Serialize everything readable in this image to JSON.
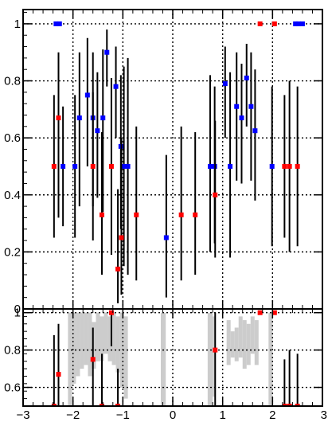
{
  "chart_data": [
    {
      "type": "scatter",
      "title": "",
      "xlabel": "",
      "ylabel": "",
      "xlim": [
        -3,
        3
      ],
      "ylim": [
        0,
        1.05
      ],
      "grid": true,
      "y_ticks": [
        0,
        0.2,
        0.4,
        0.6,
        0.8,
        1
      ],
      "y_tick_labels": [
        "0",
        "0.2",
        "0.4",
        "0.6",
        "0.8",
        "1"
      ],
      "series": [
        {
          "color": "#0000ff",
          "points": [
            {
              "x": -2.34,
              "y": 1.0,
              "lo": 1.0,
              "hi": 1.0
            },
            {
              "x": -2.27,
              "y": 1.0,
              "lo": 1.0,
              "hi": 1.0
            },
            {
              "x": -2.2,
              "y": 0.5,
              "lo": 0.29,
              "hi": 0.71
            },
            {
              "x": -1.96,
              "y": 0.5,
              "lo": 0.25,
              "hi": 0.75
            },
            {
              "x": -1.87,
              "y": 0.67,
              "lo": 0.36,
              "hi": 0.9
            },
            {
              "x": -1.71,
              "y": 0.75,
              "lo": 0.5,
              "hi": 0.95
            },
            {
              "x": -1.6,
              "y": 0.67,
              "lo": 0.36,
              "hi": 0.9
            },
            {
              "x": -1.51,
              "y": 0.625,
              "lo": 0.39,
              "hi": 0.83
            },
            {
              "x": -1.4,
              "y": 0.67,
              "lo": 0.34,
              "hi": 0.91
            },
            {
              "x": -1.32,
              "y": 0.9,
              "lo": 0.78,
              "hi": 0.98
            },
            {
              "x": -1.14,
              "y": 0.78,
              "lo": 0.6,
              "hi": 0.92
            },
            {
              "x": -1.04,
              "y": 0.57,
              "lo": 0.28,
              "hi": 0.82
            },
            {
              "x": -0.98,
              "y": 0.5,
              "lo": 0.15,
              "hi": 0.85
            },
            {
              "x": -0.9,
              "y": 0.5,
              "lo": 0.12,
              "hi": 0.88
            },
            {
              "x": -0.13,
              "y": 0.25,
              "lo": 0.04,
              "hi": 0.54
            },
            {
              "x": 0.75,
              "y": 0.5,
              "lo": 0.2,
              "hi": 0.82
            },
            {
              "x": 0.84,
              "y": 0.5,
              "lo": 0.23,
              "hi": 0.78
            },
            {
              "x": 1.05,
              "y": 0.79,
              "lo": 0.6,
              "hi": 0.92
            },
            {
              "x": 1.15,
              "y": 0.5,
              "lo": 0.18,
              "hi": 0.83
            },
            {
              "x": 1.28,
              "y": 0.71,
              "lo": 0.45,
              "hi": 0.9
            },
            {
              "x": 1.38,
              "y": 0.67,
              "lo": 0.44,
              "hi": 0.86
            },
            {
              "x": 1.48,
              "y": 0.81,
              "lo": 0.64,
              "hi": 0.93
            },
            {
              "x": 1.57,
              "y": 0.71,
              "lo": 0.45,
              "hi": 0.9
            },
            {
              "x": 1.65,
              "y": 0.625,
              "lo": 0.38,
              "hi": 0.84
            },
            {
              "x": 1.99,
              "y": 0.5,
              "lo": 0.22,
              "hi": 0.78
            },
            {
              "x": 2.46,
              "y": 1.0,
              "lo": 1.0,
              "hi": 1.0
            },
            {
              "x": 2.52,
              "y": 1.0,
              "lo": 1.0,
              "hi": 1.0
            },
            {
              "x": 2.6,
              "y": 1.0,
              "lo": 1.0,
              "hi": 1.0
            }
          ]
        },
        {
          "color": "#ff0000",
          "points": [
            {
              "x": -2.38,
              "y": 0.5,
              "lo": 0.25,
              "hi": 0.75
            },
            {
              "x": -2.29,
              "y": 0.67,
              "lo": 0.32,
              "hi": 0.9
            },
            {
              "x": -1.6,
              "y": 0.5,
              "lo": 0.24,
              "hi": 0.76
            },
            {
              "x": -1.42,
              "y": 0.33,
              "lo": 0.12,
              "hi": 0.62
            },
            {
              "x": -1.23,
              "y": 0.5,
              "lo": 0.19,
              "hi": 0.81
            },
            {
              "x": -1.1,
              "y": 0.14,
              "lo": 0.02,
              "hi": 0.42
            },
            {
              "x": -1.03,
              "y": 0.25,
              "lo": 0.05,
              "hi": 0.6
            },
            {
              "x": -0.73,
              "y": 0.33,
              "lo": 0.1,
              "hi": 0.64
            },
            {
              "x": 0.17,
              "y": 0.33,
              "lo": 0.1,
              "hi": 0.64
            },
            {
              "x": 0.45,
              "y": 0.33,
              "lo": 0.12,
              "hi": 0.62
            },
            {
              "x": 0.85,
              "y": 0.4,
              "lo": 0.18,
              "hi": 0.66
            },
            {
              "x": 1.75,
              "y": 1.0,
              "lo": 1.0,
              "hi": 1.0
            },
            {
              "x": 2.04,
              "y": 1.0,
              "lo": 1.0,
              "hi": 1.0
            },
            {
              "x": 2.24,
              "y": 0.5,
              "lo": 0.25,
              "hi": 0.75
            },
            {
              "x": 2.34,
              "y": 0.5,
              "lo": 0.2,
              "hi": 0.8
            },
            {
              "x": 2.5,
              "y": 0.5,
              "lo": 0.22,
              "hi": 0.78
            }
          ]
        }
      ]
    },
    {
      "type": "scatter",
      "title": "",
      "xlabel": "",
      "ylabel": "",
      "xlim": [
        -3,
        3
      ],
      "ylim": [
        0.5,
        1.02
      ],
      "grid": true,
      "x_ticks": [
        -3,
        -2,
        -1,
        0,
        1,
        2,
        3
      ],
      "x_tick_labels": [
        "−3",
        "−2",
        "−1",
        "0",
        "1",
        "2",
        "3"
      ],
      "y_ticks": [
        0.6,
        0.8,
        1
      ],
      "y_tick_labels": [
        "0.6",
        "0.8",
        "1"
      ],
      "band": {
        "color": "#cccccc",
        "bins": [
          {
            "x0": -2.1,
            "x1": -2.02,
            "lo": 0.5,
            "hi": 1.0
          },
          {
            "x0": -2.02,
            "x1": -1.94,
            "lo": 0.62,
            "hi": 1.0
          },
          {
            "x0": -1.94,
            "x1": -1.86,
            "lo": 0.66,
            "hi": 1.0
          },
          {
            "x0": -1.86,
            "x1": -1.78,
            "lo": 0.7,
            "hi": 1.0
          },
          {
            "x0": -1.78,
            "x1": -1.7,
            "lo": 0.72,
            "hi": 1.0
          },
          {
            "x0": -1.7,
            "x1": -1.62,
            "lo": 0.66,
            "hi": 1.0
          },
          {
            "x0": -1.62,
            "x1": -1.54,
            "lo": 0.7,
            "hi": 0.95
          },
          {
            "x0": -1.54,
            "x1": -1.46,
            "lo": 0.74,
            "hi": 1.0
          },
          {
            "x0": -1.46,
            "x1": -1.38,
            "lo": 0.74,
            "hi": 0.98
          },
          {
            "x0": -1.38,
            "x1": -1.3,
            "lo": 0.78,
            "hi": 1.0
          },
          {
            "x0": -1.3,
            "x1": -1.22,
            "lo": 0.74,
            "hi": 0.98
          },
          {
            "x0": -1.22,
            "x1": -1.14,
            "lo": 0.72,
            "hi": 1.0
          },
          {
            "x0": -1.14,
            "x1": -1.06,
            "lo": 0.68,
            "hi": 0.98
          },
          {
            "x0": -1.06,
            "x1": -0.98,
            "lo": 0.6,
            "hi": 1.0
          },
          {
            "x0": -0.98,
            "x1": -0.9,
            "lo": 0.54,
            "hi": 0.98
          },
          {
            "x0": -0.24,
            "x1": -0.14,
            "lo": 0.5,
            "hi": 1.0
          },
          {
            "x0": 0.7,
            "x1": 0.8,
            "lo": 0.5,
            "hi": 1.0
          },
          {
            "x0": 0.8,
            "x1": 0.86,
            "lo": 0.55,
            "hi": 0.98
          },
          {
            "x0": 1.08,
            "x1": 1.16,
            "lo": 0.72,
            "hi": 0.96
          },
          {
            "x0": 1.16,
            "x1": 1.24,
            "lo": 0.76,
            "hi": 0.9
          },
          {
            "x0": 1.24,
            "x1": 1.32,
            "lo": 0.74,
            "hi": 0.92
          },
          {
            "x0": 1.32,
            "x1": 1.4,
            "lo": 0.76,
            "hi": 0.98
          },
          {
            "x0": 1.4,
            "x1": 1.48,
            "lo": 0.7,
            "hi": 0.96
          },
          {
            "x0": 1.48,
            "x1": 1.56,
            "lo": 0.72,
            "hi": 0.94
          },
          {
            "x0": 1.56,
            "x1": 1.64,
            "lo": 0.78,
            "hi": 0.98
          },
          {
            "x0": 1.64,
            "x1": 1.72,
            "lo": 0.72,
            "hi": 0.96
          },
          {
            "x0": 1.92,
            "x1": 2.0,
            "lo": 0.5,
            "hi": 1.0
          }
        ]
      },
      "series": [
        {
          "color": "#ff0000",
          "points": [
            {
              "x": -2.38,
              "y": 0.5,
              "lo": 0.5,
              "hi": 0.88
            },
            {
              "x": -2.29,
              "y": 0.67,
              "lo": 0.5,
              "hi": 0.94
            },
            {
              "x": -1.6,
              "y": 0.75,
              "lo": 0.5,
              "hi": 0.92
            },
            {
              "x": -1.42,
              "y": 0.5,
              "lo": 0.5,
              "hi": 0.78
            },
            {
              "x": -1.23,
              "y": 1.0,
              "lo": 0.82,
              "hi": 1.0
            },
            {
              "x": -1.1,
              "y": 0.5,
              "lo": 0.5,
              "hi": 0.7
            },
            {
              "x": 0.85,
              "y": 0.8,
              "lo": 0.5,
              "hi": 1.0
            },
            {
              "x": 1.75,
              "y": 1.0,
              "lo": 1.0,
              "hi": 1.0
            },
            {
              "x": 2.04,
              "y": 1.0,
              "lo": 1.0,
              "hi": 1.0
            },
            {
              "x": 2.24,
              "y": 0.5,
              "lo": 0.5,
              "hi": 0.75
            },
            {
              "x": 2.34,
              "y": 0.5,
              "lo": 0.5,
              "hi": 0.8
            },
            {
              "x": 2.5,
              "y": 0.5,
              "lo": 0.5,
              "hi": 0.78
            }
          ]
        }
      ]
    }
  ]
}
